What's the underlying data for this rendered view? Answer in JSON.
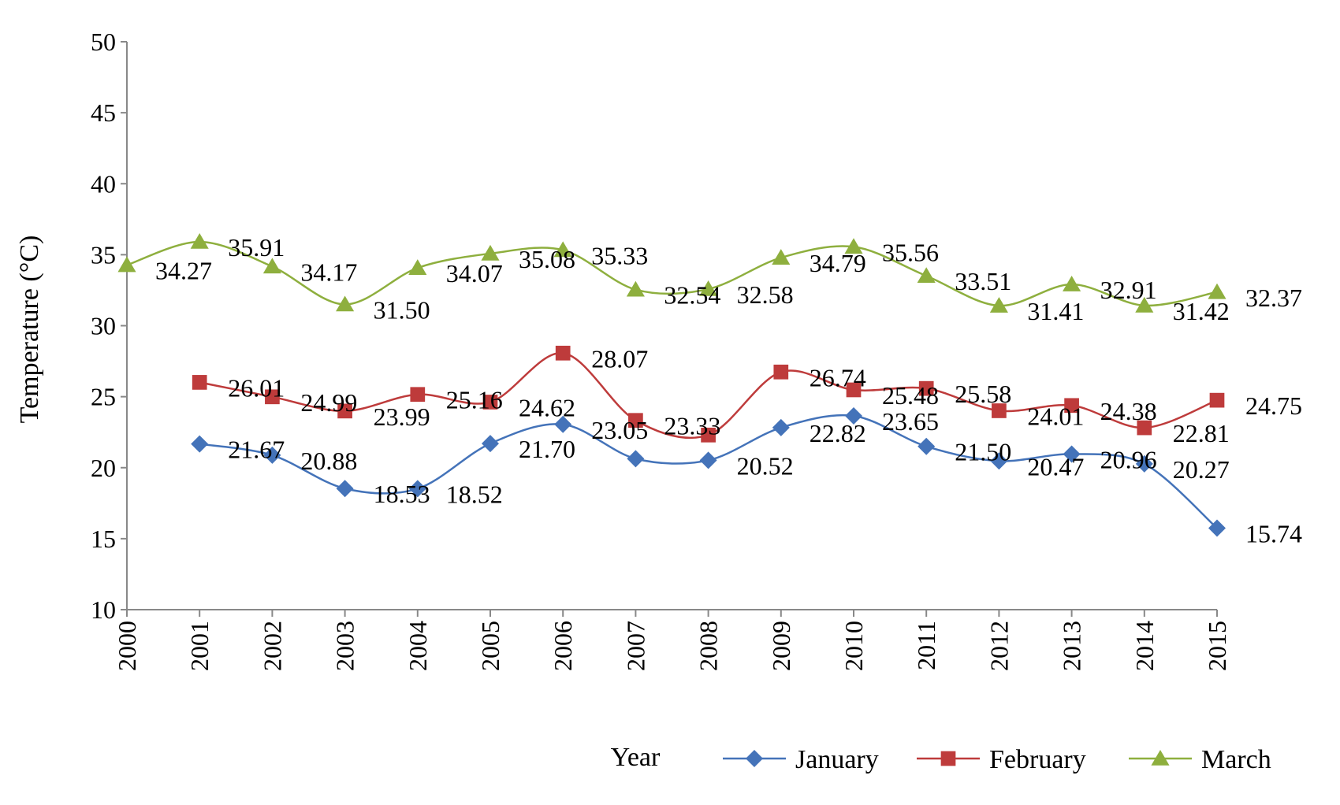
{
  "chart_data": {
    "type": "line",
    "title": "",
    "xlabel": "Year",
    "ylabel": "Temperature (°C)",
    "ylim": [
      10,
      50
    ],
    "yticks": [
      "10",
      "15",
      "20",
      "25",
      "30",
      "35",
      "40",
      "45",
      "50"
    ],
    "categories": [
      "2000",
      "2001",
      "2002",
      "2003",
      "2004",
      "2005",
      "2006",
      "2007",
      "2008",
      "2009",
      "2010",
      "2011",
      "2012",
      "2013",
      "2014",
      "2015"
    ],
    "legend_position": "bottom-right",
    "grid": false,
    "series": [
      {
        "name": "January",
        "color": "#4473B9",
        "marker": "diamond",
        "values": [
          null,
          21.67,
          20.88,
          18.53,
          18.52,
          21.7,
          23.05,
          20.63,
          20.52,
          22.82,
          23.65,
          21.5,
          20.47,
          20.96,
          20.27,
          15.74
        ],
        "labels": [
          "",
          "21.67",
          "20.88",
          "18.53",
          "18.52",
          "21.70",
          "23.05",
          "",
          "20.52",
          "22.82",
          "23.65",
          "21.50",
          "20.47",
          "20.96",
          "20.27",
          "15.74"
        ]
      },
      {
        "name": "February",
        "color": "#BE3B3B",
        "marker": "square",
        "values": [
          null,
          26.01,
          24.99,
          23.99,
          25.16,
          24.62,
          28.07,
          23.33,
          22.3,
          26.74,
          25.48,
          25.58,
          24.01,
          24.38,
          22.81,
          24.75
        ],
        "labels": [
          "",
          "26.01",
          "24.99",
          "23.99",
          "25.16",
          "24.62",
          "28.07",
          "23.33",
          "",
          "26.74",
          "25.48",
          "25.58",
          "24.01",
          "24.38",
          "22.81",
          "24.75"
        ]
      },
      {
        "name": "March",
        "color": "#8EAF3E",
        "marker": "triangle",
        "values": [
          34.27,
          35.91,
          34.17,
          31.5,
          34.07,
          35.08,
          35.33,
          32.54,
          32.58,
          34.79,
          35.56,
          33.51,
          31.41,
          32.91,
          31.42,
          32.37
        ],
        "labels": [
          "34.27",
          "35.91",
          "34.17",
          "31.50",
          "34.07",
          "35.08",
          "35.33",
          "32.54",
          "32.58",
          "34.79",
          "35.56",
          "33.51",
          "31.41",
          "32.91",
          "31.42",
          "32.37"
        ]
      }
    ]
  }
}
